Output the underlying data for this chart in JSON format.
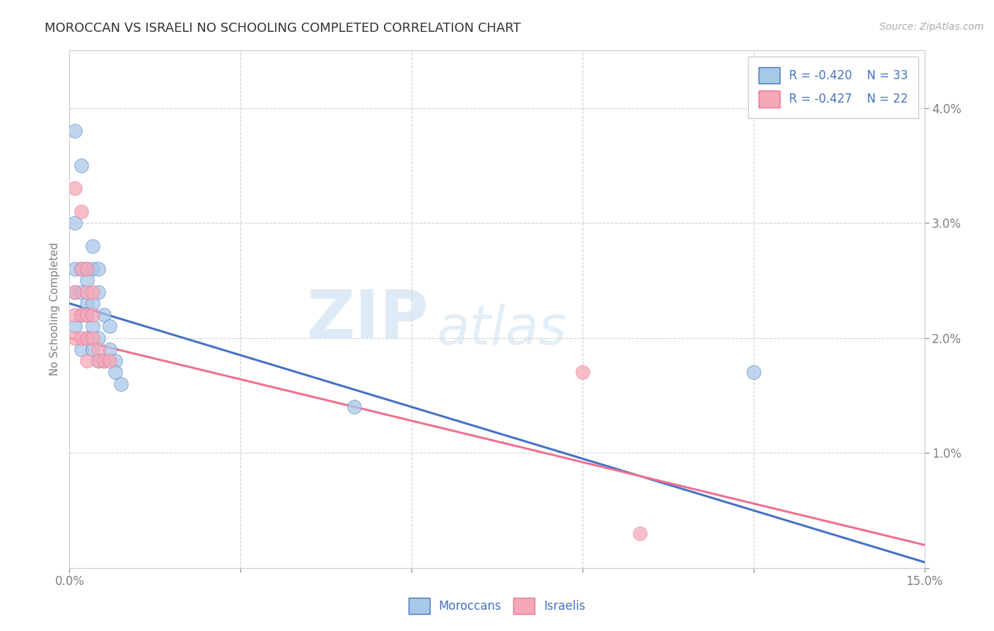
{
  "title": "MOROCCAN VS ISRAELI NO SCHOOLING COMPLETED CORRELATION CHART",
  "source": "Source: ZipAtlas.com",
  "ylabel": "No Schooling Completed",
  "xlim": [
    0.0,
    0.15
  ],
  "ylim": [
    0.0,
    0.045
  ],
  "xtick_positions": [
    0.0,
    0.03,
    0.06,
    0.09,
    0.12,
    0.15
  ],
  "xtick_labels": [
    "0.0%",
    "",
    "",
    "",
    "",
    "15.0%"
  ],
  "ytick_positions": [
    0.0,
    0.01,
    0.02,
    0.03,
    0.04
  ],
  "ytick_labels": [
    "",
    "1.0%",
    "2.0%",
    "3.0%",
    "4.0%"
  ],
  "moroccan_R": "-0.420",
  "moroccan_N": "33",
  "israeli_R": "-0.427",
  "israeli_N": "22",
  "moroccan_color": "#a8c8e8",
  "israeli_color": "#f4a8b8",
  "moroccan_line_color": "#4472c4",
  "israeli_line_color": "#f07090",
  "watermark_zip": "ZIP",
  "watermark_atlas": "atlas",
  "moroccan_points": [
    [
      0.001,
      0.038
    ],
    [
      0.002,
      0.035
    ],
    [
      0.001,
      0.03
    ],
    [
      0.004,
      0.028
    ],
    [
      0.001,
      0.026
    ],
    [
      0.002,
      0.026
    ],
    [
      0.003,
      0.026
    ],
    [
      0.004,
      0.026
    ],
    [
      0.005,
      0.026
    ],
    [
      0.003,
      0.025
    ],
    [
      0.001,
      0.024
    ],
    [
      0.002,
      0.024
    ],
    [
      0.005,
      0.024
    ],
    [
      0.003,
      0.023
    ],
    [
      0.004,
      0.023
    ],
    [
      0.002,
      0.022
    ],
    [
      0.003,
      0.022
    ],
    [
      0.006,
      0.022
    ],
    [
      0.001,
      0.021
    ],
    [
      0.004,
      0.021
    ],
    [
      0.007,
      0.021
    ],
    [
      0.003,
      0.02
    ],
    [
      0.005,
      0.02
    ],
    [
      0.002,
      0.019
    ],
    [
      0.004,
      0.019
    ],
    [
      0.007,
      0.019
    ],
    [
      0.005,
      0.018
    ],
    [
      0.006,
      0.018
    ],
    [
      0.008,
      0.018
    ],
    [
      0.008,
      0.017
    ],
    [
      0.009,
      0.016
    ],
    [
      0.05,
      0.014
    ],
    [
      0.12,
      0.017
    ]
  ],
  "israeli_points": [
    [
      0.001,
      0.033
    ],
    [
      0.002,
      0.031
    ],
    [
      0.002,
      0.026
    ],
    [
      0.003,
      0.026
    ],
    [
      0.001,
      0.024
    ],
    [
      0.003,
      0.024
    ],
    [
      0.004,
      0.024
    ],
    [
      0.001,
      0.022
    ],
    [
      0.002,
      0.022
    ],
    [
      0.003,
      0.022
    ],
    [
      0.004,
      0.022
    ],
    [
      0.001,
      0.02
    ],
    [
      0.002,
      0.02
    ],
    [
      0.003,
      0.02
    ],
    [
      0.004,
      0.02
    ],
    [
      0.005,
      0.019
    ],
    [
      0.003,
      0.018
    ],
    [
      0.005,
      0.018
    ],
    [
      0.006,
      0.018
    ],
    [
      0.007,
      0.018
    ],
    [
      0.09,
      0.017
    ],
    [
      0.1,
      0.003
    ]
  ]
}
